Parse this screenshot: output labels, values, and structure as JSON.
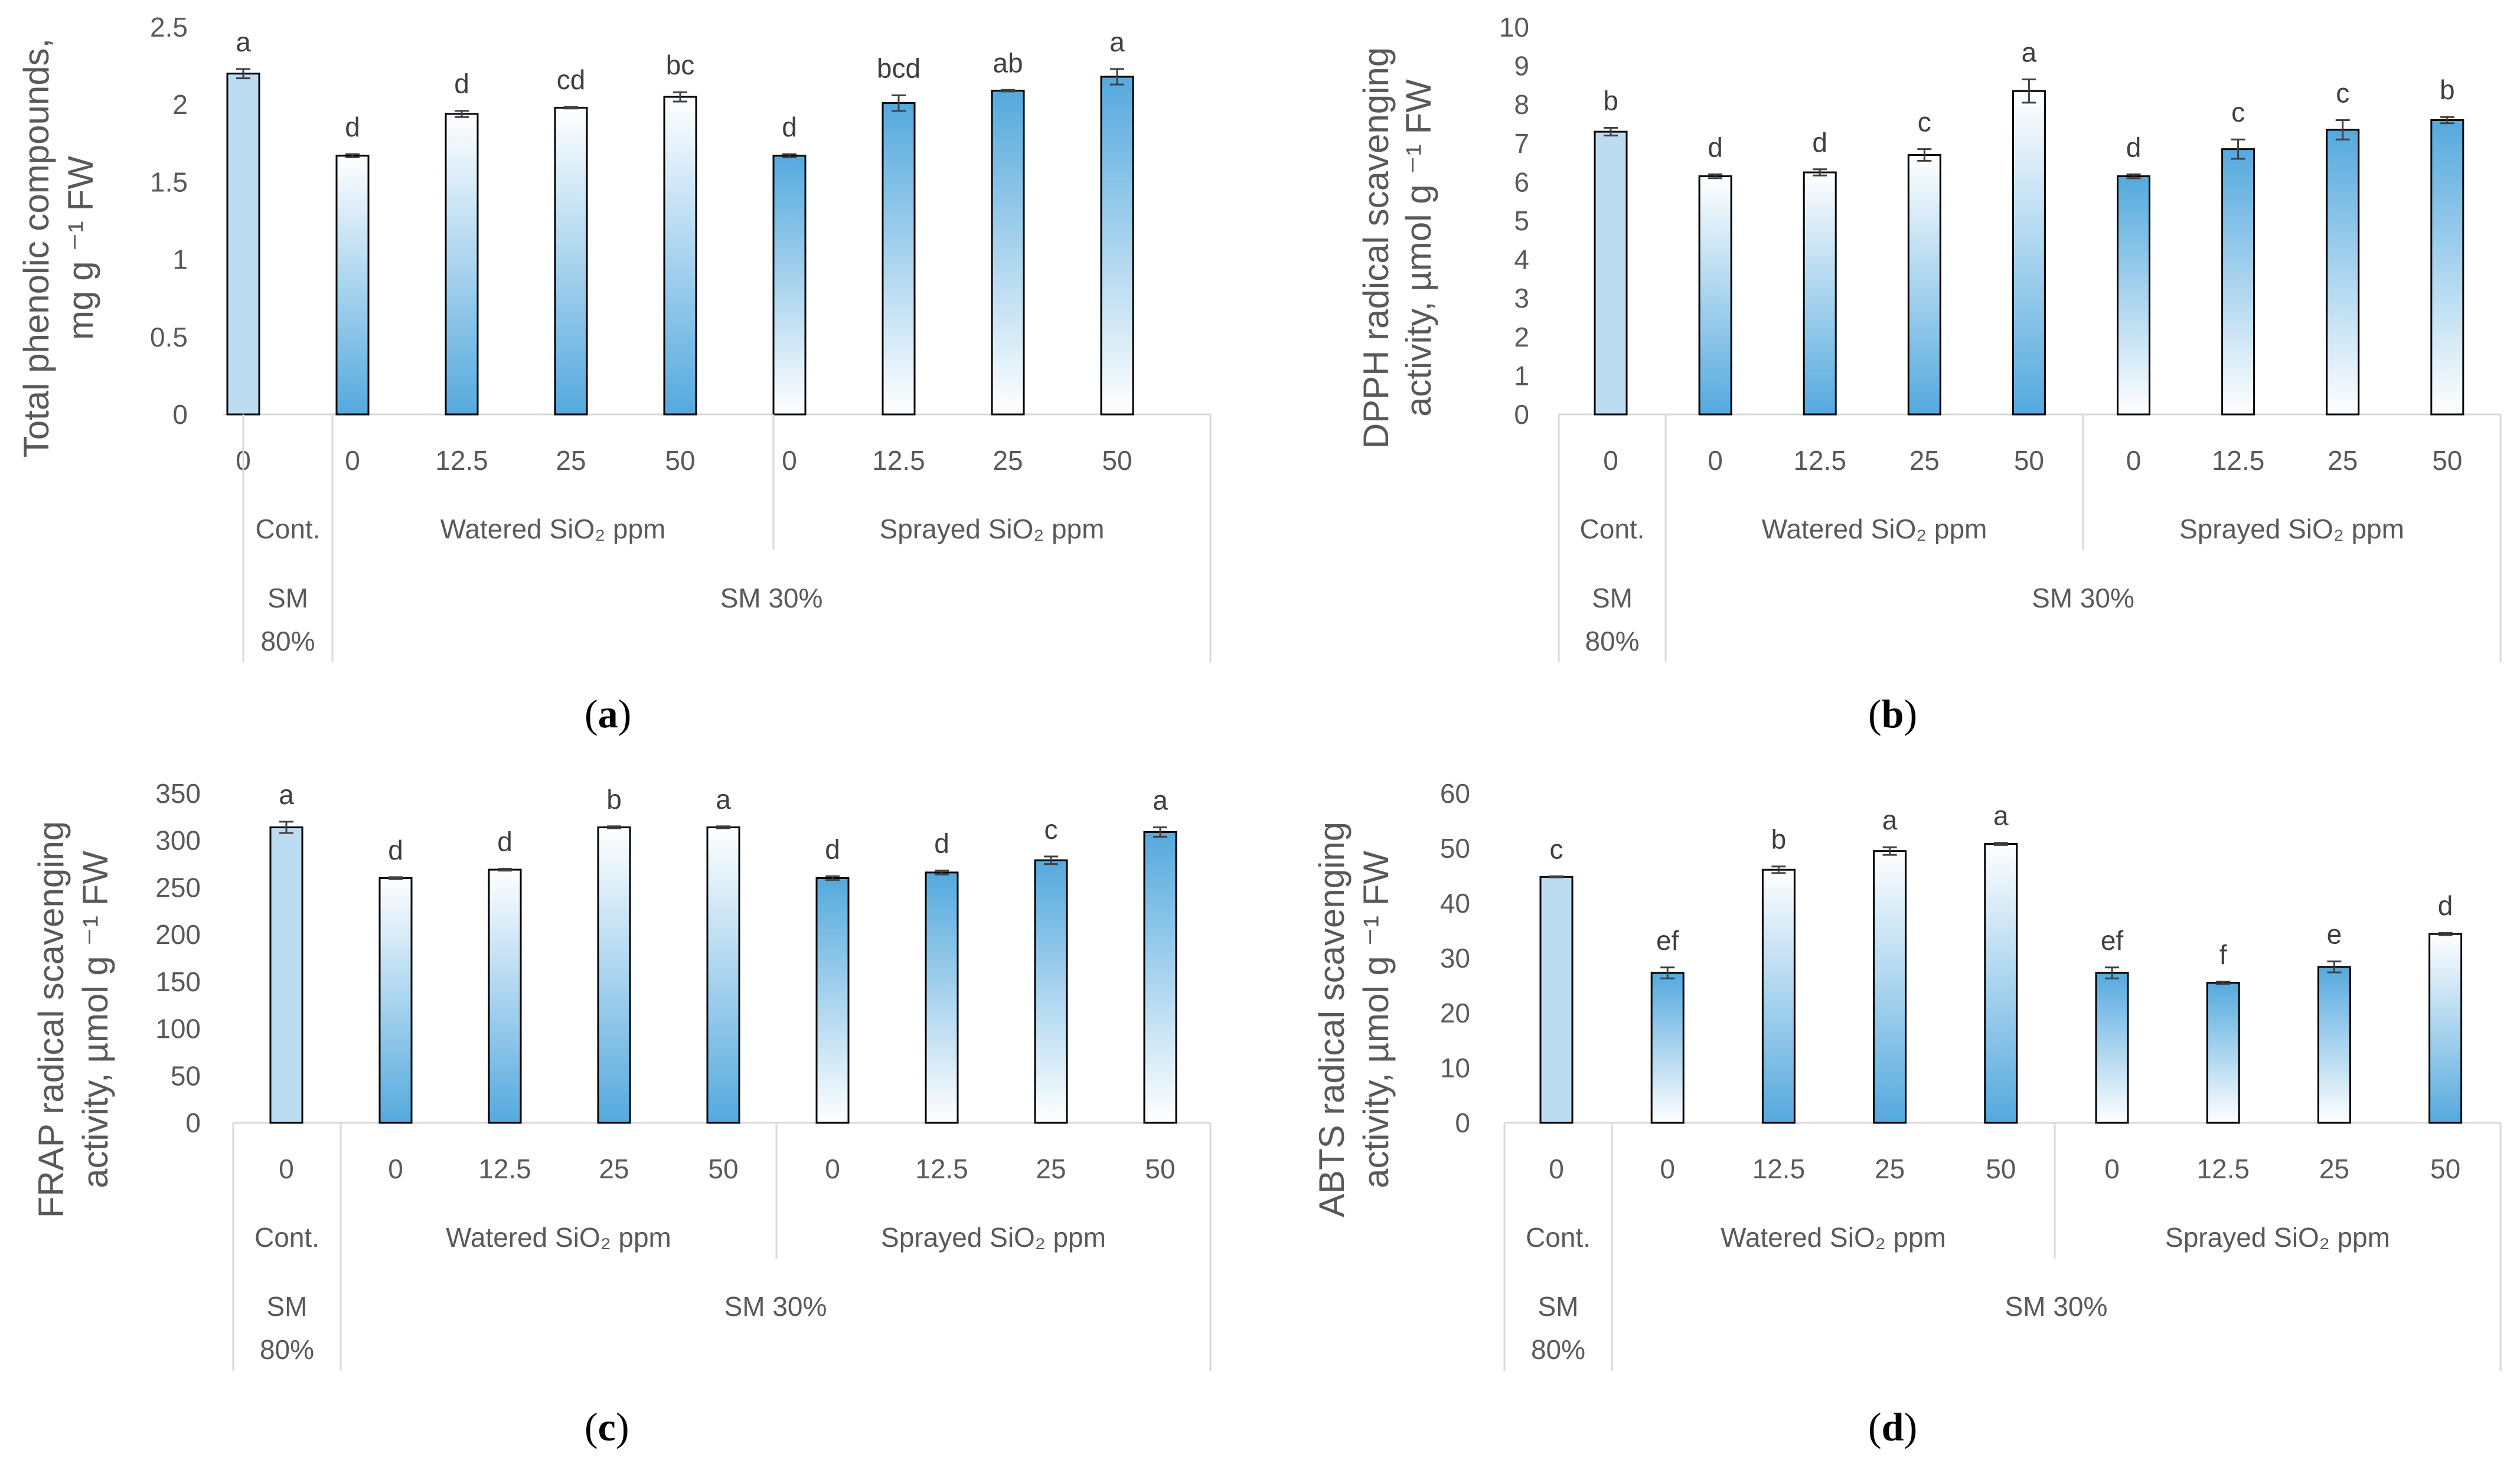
{
  "chart_data": [
    {
      "type": "bar",
      "panel_label": "a",
      "ylabel_lines": [
        "Total phenolic compounds,",
        "mg g ⁻¹ FW"
      ],
      "ylim": [
        0,
        2.5
      ],
      "yticks": [
        "0",
        "0.5",
        "1",
        "1.5",
        "2",
        "2.5"
      ],
      "categories": [
        "0",
        "0",
        "12.5",
        "25",
        "50",
        "0",
        "12.5",
        "25",
        "50"
      ],
      "groups": [
        "Cont.",
        "Watered SiO₂ ppm",
        "Sprayed SiO₂ ppm"
      ],
      "supergroups": [
        "SM 80%",
        "SM 30%"
      ],
      "values": [
        2.2,
        1.67,
        1.94,
        1.98,
        2.05,
        1.67,
        2.01,
        2.09,
        2.18
      ],
      "errors": [
        0.03,
        0.01,
        0.02,
        0.005,
        0.03,
        0.01,
        0.05,
        0.005,
        0.05
      ],
      "letters": [
        "a",
        "d",
        "d",
        "cd",
        "bc",
        "d",
        "bcd",
        "ab",
        "a"
      ],
      "fills": [
        "light",
        "pale-top",
        "pale-top",
        "pale-top",
        "pale-top",
        "pale-bottom",
        "pale-bottom",
        "pale-bottom",
        "pale-bottom"
      ]
    },
    {
      "type": "bar",
      "panel_label": "b",
      "ylabel_lines": [
        "DPPH radical scavenging",
        "activity, µmol g ⁻¹ FW"
      ],
      "ylim": [
        0,
        10
      ],
      "yticks": [
        "0",
        "1",
        "2",
        "3",
        "4",
        "5",
        "6",
        "7",
        "8",
        "9",
        "10"
      ],
      "categories": [
        "0",
        "0",
        "12.5",
        "25",
        "50",
        "0",
        "12.5",
        "25",
        "50"
      ],
      "groups": [
        "Cont.",
        "Watered SiO₂ ppm",
        "Sprayed SiO₂ ppm"
      ],
      "supergroups": [
        "SM 80%",
        "SM 30%"
      ],
      "values": [
        7.3,
        6.15,
        6.25,
        6.7,
        8.35,
        6.15,
        6.85,
        7.35,
        7.6
      ],
      "errors": [
        0.1,
        0.05,
        0.08,
        0.15,
        0.3,
        0.05,
        0.25,
        0.25,
        0.08
      ],
      "letters": [
        "b",
        "d",
        "d",
        "c",
        "a",
        "d",
        "c",
        "c",
        "b"
      ],
      "fills": [
        "light",
        "pale-top",
        "pale-top",
        "pale-top",
        "pale-top",
        "pale-bottom",
        "pale-bottom",
        "pale-bottom",
        "pale-bottom"
      ]
    },
    {
      "type": "bar",
      "panel_label": "c",
      "ylabel_lines": [
        "FRAP radical scavenging",
        "activity, µmol g ⁻¹ FW"
      ],
      "ylim": [
        0,
        350
      ],
      "yticks": [
        "0",
        "50",
        "100",
        "150",
        "200",
        "250",
        "300",
        "350"
      ],
      "categories": [
        "0",
        "0",
        "12.5",
        "25",
        "50",
        "0",
        "12.5",
        "25",
        "50"
      ],
      "groups": [
        "Cont.",
        "Watered SiO₂ ppm",
        "Sprayed SiO₂ ppm"
      ],
      "supergroups": [
        "SM 80%",
        "SM 30%"
      ],
      "values": [
        314,
        260,
        269,
        314,
        314,
        260,
        266,
        279,
        309
      ],
      "errors": [
        6,
        1,
        1,
        1,
        1,
        2,
        2,
        4,
        5
      ],
      "letters": [
        "a",
        "d",
        "d",
        "b",
        "a",
        "d",
        "d",
        "c",
        "a"
      ],
      "fills": [
        "light",
        "pale-top",
        "pale-top",
        "pale-top",
        "pale-top",
        "pale-bottom",
        "pale-bottom",
        "pale-bottom",
        "pale-bottom"
      ]
    },
    {
      "type": "bar",
      "panel_label": "d",
      "ylabel_lines": [
        "ABTS radical scavenging",
        "activity, µmol g ⁻¹ FW"
      ],
      "ylim": [
        0,
        60
      ],
      "yticks": [
        "0",
        "10",
        "20",
        "30",
        "40",
        "50",
        "60"
      ],
      "categories": [
        "0",
        "0",
        "12.5",
        "25",
        "50",
        "0",
        "12.5",
        "25",
        "50"
      ],
      "groups": [
        "Cont.",
        "Watered SiO₂ ppm",
        "Sprayed SiO₂ ppm"
      ],
      "supergroups": [
        "SM 80%",
        "SM 30%"
      ],
      "values": [
        44.8,
        27.3,
        46.1,
        49.5,
        50.8,
        27.3,
        25.5,
        28.4,
        34.4
      ],
      "errors": [
        0.1,
        1.0,
        0.6,
        0.7,
        0.2,
        1.0,
        0.2,
        1.0,
        0.2
      ],
      "letters": [
        "c",
        "ef",
        "b",
        "a",
        "a",
        "ef",
        "f",
        "e",
        "d"
      ],
      "fills": [
        "light",
        "pale-bottom",
        "pale-top",
        "pale-top",
        "pale-top",
        "pale-bottom",
        "pale-bottom",
        "pale-bottom",
        "pale-top"
      ]
    }
  ],
  "colors": {
    "bar_blue": "#54a9de",
    "bar_light": "#bcdcf2",
    "bar_pale": "#ffffff",
    "bar_outline": "#000000",
    "axis_line": "#d9d9d9",
    "text": "#595959",
    "letter_text": "#3f3f3f"
  }
}
